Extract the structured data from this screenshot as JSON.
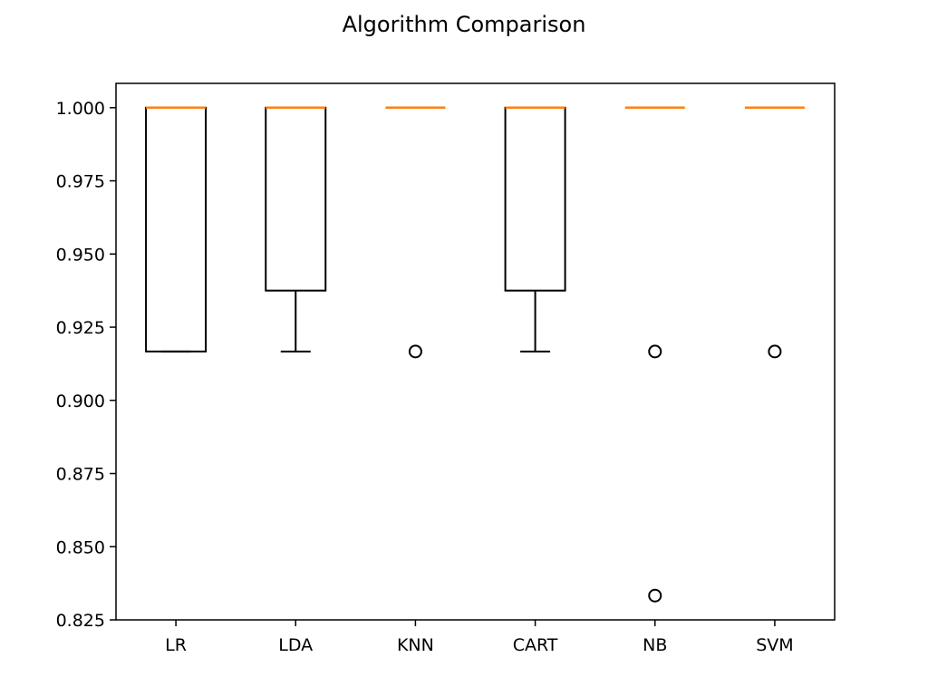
{
  "chart_data": {
    "type": "boxplot",
    "title": "Algorithm Comparison",
    "xlabel": "",
    "ylabel": "",
    "ylim": [
      0.825,
      1.0083
    ],
    "yticks": [
      1.0,
      0.975,
      0.95,
      0.925,
      0.9,
      0.875,
      0.85,
      0.825
    ],
    "ytick_labels": [
      "1.000",
      "0.975",
      "0.950",
      "0.925",
      "0.900",
      "0.875",
      "0.850",
      "0.825"
    ],
    "categories": [
      "LR",
      "LDA",
      "KNN",
      "CART",
      "NB",
      "SVM"
    ],
    "boxes": [
      {
        "label": "LR",
        "whisker_low": 0.9167,
        "q1": 0.9167,
        "median": 1.0,
        "q3": 1.0,
        "whisker_high": 1.0,
        "outliers": []
      },
      {
        "label": "LDA",
        "whisker_low": 0.9167,
        "q1": 0.9375,
        "median": 1.0,
        "q3": 1.0,
        "whisker_high": 1.0,
        "outliers": []
      },
      {
        "label": "KNN",
        "whisker_low": 1.0,
        "q1": 1.0,
        "median": 1.0,
        "q3": 1.0,
        "whisker_high": 1.0,
        "outliers": [
          0.9167
        ]
      },
      {
        "label": "CART",
        "whisker_low": 0.9167,
        "q1": 0.9375,
        "median": 1.0,
        "q3": 1.0,
        "whisker_high": 1.0,
        "outliers": []
      },
      {
        "label": "NB",
        "whisker_low": 1.0,
        "q1": 1.0,
        "median": 1.0,
        "q3": 1.0,
        "whisker_high": 1.0,
        "outliers": [
          0.9167,
          0.8333
        ]
      },
      {
        "label": "SVM",
        "whisker_low": 1.0,
        "q1": 1.0,
        "median": 1.0,
        "q3": 1.0,
        "whisker_high": 1.0,
        "outliers": [
          0.9167
        ]
      }
    ],
    "grid": false,
    "legend": "none",
    "colors": {
      "box": "#000000",
      "median": "#ff7f0e",
      "background": "#ffffff"
    }
  }
}
